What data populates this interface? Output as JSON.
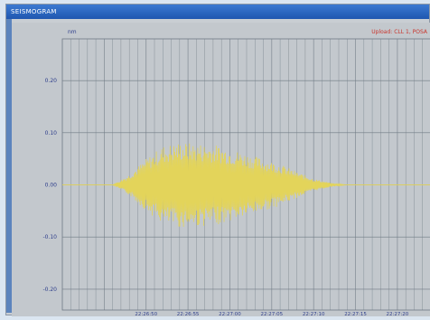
{
  "window": {
    "title": "SEISMOGRAM"
  },
  "plot": {
    "unit_label": "nm",
    "channel_label": "Upload: CLL 1, POSA"
  },
  "chart_data": {
    "type": "line",
    "title": "",
    "xlabel": "",
    "ylabel": "nm",
    "ytick_labels": [
      "0.20",
      "0.10",
      "0.00",
      "-0.10",
      "-0.20"
    ],
    "yticks": [
      0.2,
      0.1,
      0.0,
      -0.1,
      -0.2
    ],
    "ylim": [
      -0.24,
      0.28
    ],
    "xtick_labels": [
      "22:26:50",
      "22:26:55",
      "22:27:00",
      "22:27:05",
      "22:27:10",
      "22:27:15",
      "22:27:20"
    ],
    "xticks": [
      "22:26:50",
      "22:26:55",
      "22:27:00",
      "22:27:05",
      "22:27:10",
      "22:27:15",
      "22:27:20"
    ],
    "grid": true,
    "line_color": "#e3d45a",
    "series": [
      {
        "name": "",
        "envelope": [
          {
            "x": "22:26:40",
            "y": 0.0
          },
          {
            "x": "22:26:46",
            "y": 0.0
          },
          {
            "x": "22:26:48",
            "y": 0.02
          },
          {
            "x": "22:26:50",
            "y": 0.05
          },
          {
            "x": "22:26:52",
            "y": 0.075
          },
          {
            "x": "22:26:54",
            "y": 0.082
          },
          {
            "x": "22:26:56",
            "y": 0.08
          },
          {
            "x": "22:26:58",
            "y": 0.078
          },
          {
            "x": "22:27:00",
            "y": 0.07
          },
          {
            "x": "22:27:02",
            "y": 0.06
          },
          {
            "x": "22:27:04",
            "y": 0.05
          },
          {
            "x": "22:27:06",
            "y": 0.04
          },
          {
            "x": "22:27:08",
            "y": 0.025
          },
          {
            "x": "22:27:10",
            "y": 0.012
          },
          {
            "x": "22:27:12",
            "y": 0.004
          },
          {
            "x": "22:27:14",
            "y": 0.0
          },
          {
            "x": "22:27:24",
            "y": 0.0
          }
        ]
      }
    ]
  },
  "colors": {
    "plot_bg": "#c3c8cd",
    "grid": "#6f7a84",
    "tick_text": "#2f3f8c",
    "channel_text": "#c9342c"
  }
}
